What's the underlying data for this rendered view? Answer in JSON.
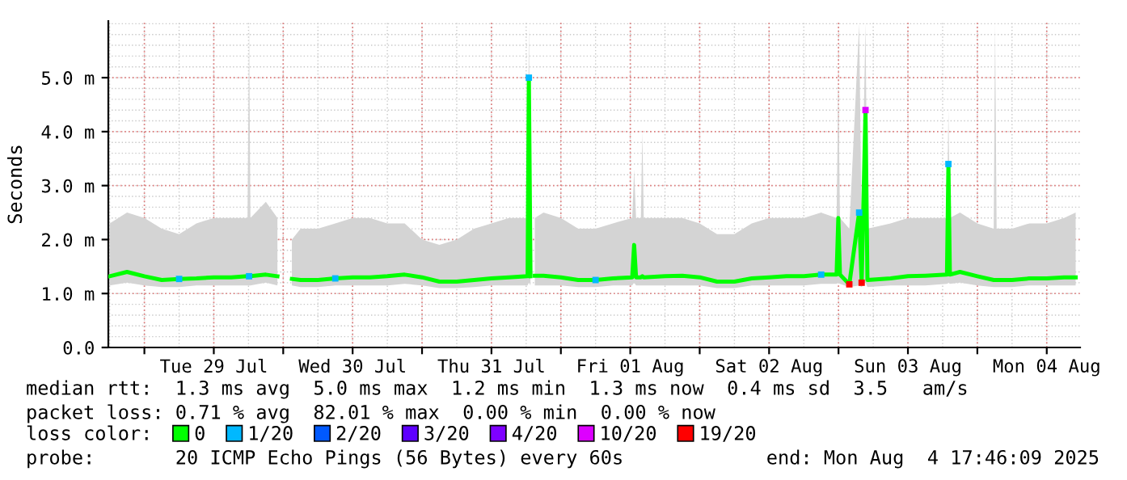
{
  "chart_data": {
    "type": "line",
    "ylabel": "Seconds",
    "x": [
      "2025-07-28T18:00",
      "2025-07-28T21:00",
      "2025-07-29T00:00",
      "2025-07-29T03:00",
      "2025-07-29T06:00",
      "2025-07-29T09:00",
      "2025-07-29T12:00",
      "2025-07-29T15:00",
      "2025-07-29T17:50",
      "2025-07-29T18:06",
      "2025-07-29T18:20",
      "2025-07-29T21:00",
      "2025-07-29T23:00",
      "2025-07-30T00:00",
      "2025-07-30T01:30",
      "2025-07-30T03:00",
      "2025-07-30T06:00",
      "2025-07-30T09:00",
      "2025-07-30T12:00",
      "2025-07-30T15:00",
      "2025-07-30T18:00",
      "2025-07-30T21:00",
      "2025-07-31T00:00",
      "2025-07-31T03:00",
      "2025-07-31T06:00",
      "2025-07-31T09:00",
      "2025-07-31T12:00",
      "2025-07-31T15:00",
      "2025-07-31T18:15",
      "2025-07-31T18:28",
      "2025-07-31T18:45",
      "2025-07-31T19:00",
      "2025-07-31T19:30",
      "2025-07-31T21:00",
      "2025-08-01T00:00",
      "2025-08-01T03:00",
      "2025-08-01T06:00",
      "2025-08-01T09:00",
      "2025-08-01T12:20",
      "2025-08-01T12:40",
      "2025-08-01T13:00",
      "2025-08-01T13:50",
      "2025-08-01T14:05",
      "2025-08-01T14:20",
      "2025-08-01T18:00",
      "2025-08-01T21:00",
      "2025-08-02T00:00",
      "2025-08-02T03:00",
      "2025-08-02T06:00",
      "2025-08-02T09:00",
      "2025-08-02T12:00",
      "2025-08-02T15:00",
      "2025-08-02T18:00",
      "2025-08-02T21:00",
      "2025-08-02T23:40",
      "2025-08-02T23:58",
      "2025-08-03T00:15",
      "2025-08-03T01:52",
      "2025-08-03T03:34",
      "2025-08-03T04:00",
      "2025-08-03T04:40",
      "2025-08-03T05:00",
      "2025-08-03T09:00",
      "2025-08-03T12:00",
      "2025-08-03T15:00",
      "2025-08-03T18:45",
      "2025-08-03T19:00",
      "2025-08-03T19:15",
      "2025-08-03T21:00",
      "2025-08-04T00:00",
      "2025-08-04T02:50",
      "2025-08-04T03:04",
      "2025-08-04T03:20",
      "2025-08-04T06:00",
      "2025-08-04T09:00",
      "2025-08-04T12:00",
      "2025-08-04T15:00",
      "2025-08-04T17:00"
    ],
    "series": [
      {
        "name": "0",
        "color": "#00ff00",
        "values": [
          1.32,
          1.4,
          1.32,
          1.25,
          1.27,
          1.28,
          1.3,
          1.3,
          1.32,
          1.32,
          1.32,
          1.35,
          1.32,
          null,
          1.27,
          1.25,
          1.25,
          1.28,
          1.3,
          1.3,
          1.32,
          1.35,
          1.3,
          1.22,
          1.22,
          1.25,
          1.28,
          1.3,
          1.32,
          5.0,
          1.32,
          null,
          1.33,
          1.33,
          1.3,
          1.25,
          1.25,
          1.28,
          1.3,
          1.9,
          1.3,
          1.3,
          1.32,
          1.3,
          1.32,
          1.33,
          1.3,
          1.22,
          1.22,
          1.28,
          1.3,
          1.32,
          1.32,
          1.35,
          1.35,
          2.4,
          1.35,
          1.17,
          2.5,
          1.2,
          4.4,
          1.25,
          1.28,
          1.32,
          1.33,
          1.35,
          3.4,
          1.35,
          1.4,
          1.32,
          1.25,
          1.25,
          1.25,
          1.25,
          1.28,
          1.28,
          1.3,
          1.3
        ],
        "lower": [
          1.15,
          1.2,
          1.15,
          1.12,
          1.12,
          1.15,
          1.15,
          1.15,
          1.15,
          1.15,
          1.15,
          1.2,
          1.15,
          null,
          1.15,
          1.12,
          1.12,
          1.15,
          1.15,
          1.15,
          1.15,
          1.18,
          1.15,
          1.1,
          1.1,
          1.12,
          1.15,
          1.15,
          1.15,
          1.2,
          1.15,
          null,
          1.15,
          1.15,
          1.15,
          1.12,
          1.12,
          1.15,
          1.15,
          1.2,
          1.15,
          1.15,
          1.15,
          1.15,
          1.15,
          1.15,
          1.15,
          1.1,
          1.1,
          1.15,
          1.15,
          1.15,
          1.15,
          1.18,
          1.18,
          1.2,
          1.18,
          1.12,
          1.15,
          1.12,
          1.2,
          1.12,
          1.15,
          1.15,
          1.15,
          1.18,
          1.2,
          1.18,
          1.2,
          1.15,
          1.12,
          1.12,
          1.12,
          1.12,
          1.15,
          1.15,
          1.15,
          1.15
        ],
        "upper": [
          2.3,
          2.5,
          2.4,
          2.2,
          2.1,
          2.3,
          2.4,
          2.4,
          2.4,
          6.0,
          2.4,
          2.7,
          2.4,
          null,
          2.0,
          2.2,
          2.2,
          2.3,
          2.4,
          2.4,
          2.3,
          2.3,
          2.0,
          1.9,
          2.0,
          2.2,
          2.3,
          2.4,
          2.4,
          6.0,
          2.4,
          null,
          2.4,
          2.5,
          2.4,
          2.2,
          2.2,
          2.3,
          2.4,
          3.3,
          2.4,
          2.4,
          4.0,
          2.4,
          2.4,
          2.4,
          2.3,
          2.1,
          2.1,
          2.3,
          2.4,
          2.4,
          2.4,
          2.5,
          2.4,
          5.0,
          2.4,
          2.2,
          6.0,
          2.2,
          6.0,
          2.2,
          2.3,
          2.4,
          2.4,
          2.4,
          4.4,
          2.4,
          2.5,
          2.3,
          2.2,
          6.0,
          2.2,
          2.2,
          2.3,
          2.3,
          2.4,
          2.5
        ]
      },
      {
        "name": "1/20",
        "color": "#00b8ff",
        "type": "scatter",
        "x": [
          "2025-07-29T06:00",
          "2025-07-29T18:06",
          "2025-07-30T09:00",
          "2025-07-31T18:28",
          "2025-08-01T06:00",
          "2025-08-02T21:00",
          "2025-08-03T03:34",
          "2025-08-03T19:00"
        ],
        "values": [
          1.27,
          1.32,
          1.28,
          5.0,
          1.25,
          1.35,
          2.5,
          3.4
        ]
      },
      {
        "name": "2/20",
        "color": "#0059ff",
        "type": "scatter",
        "values": [
          null,
          null,
          null,
          null,
          null,
          null,
          null,
          null,
          null,
          null,
          null,
          null,
          null,
          null,
          null,
          null,
          null,
          null,
          null,
          null,
          null,
          null,
          null,
          null,
          null,
          null,
          null,
          null,
          null,
          null,
          null,
          null,
          null,
          null,
          null,
          null,
          null,
          null,
          null,
          null,
          null,
          null,
          null,
          null,
          null,
          null,
          null,
          null,
          null,
          null,
          null,
          null,
          null,
          null,
          null,
          null,
          null,
          null,
          null,
          null,
          null,
          null,
          null,
          null,
          null,
          null,
          null,
          null,
          null,
          null,
          null,
          null,
          null,
          null,
          null,
          null,
          null,
          null
        ]
      },
      {
        "name": "3/20",
        "color": "#5e00ff",
        "type": "scatter",
        "values": [
          null,
          null,
          null,
          null,
          null,
          null,
          null,
          null,
          null,
          null,
          null,
          null,
          null,
          null,
          null,
          null,
          null,
          null,
          null,
          null,
          null,
          null,
          null,
          null,
          null,
          null,
          null,
          null,
          null,
          null,
          null,
          null,
          null,
          null,
          null,
          null,
          null,
          null,
          null,
          null,
          null,
          null,
          null,
          null,
          null,
          null,
          null,
          null,
          null,
          null,
          null,
          null,
          null,
          null,
          null,
          null,
          null,
          null,
          null,
          null,
          null,
          null,
          null,
          null,
          null,
          null,
          null,
          null,
          null,
          null,
          null,
          null,
          null,
          null,
          null,
          null,
          null,
          null
        ]
      },
      {
        "name": "4/20",
        "color": "#7e00ff",
        "type": "scatter",
        "values": [
          null,
          null,
          null,
          null,
          null,
          null,
          null,
          null,
          null,
          null,
          null,
          null,
          null,
          null,
          null,
          null,
          null,
          null,
          null,
          null,
          null,
          null,
          null,
          null,
          null,
          null,
          null,
          null,
          null,
          null,
          null,
          null,
          null,
          null,
          null,
          null,
          null,
          null,
          null,
          null,
          null,
          null,
          null,
          null,
          null,
          null,
          null,
          null,
          null,
          null,
          null,
          null,
          null,
          null,
          null,
          null,
          null,
          null,
          null,
          null,
          null,
          null,
          null,
          null,
          null,
          null,
          null,
          null,
          null,
          null,
          null,
          null,
          null,
          null,
          null,
          null,
          null,
          null
        ]
      },
      {
        "name": "10/20",
        "color": "#dd00ff",
        "type": "scatter",
        "x": [
          "2025-08-03T04:40"
        ],
        "values": [
          4.4
        ]
      },
      {
        "name": "19/20",
        "color": "#ff0000",
        "type": "scatter",
        "x": [
          "2025-08-03T01:52",
          "2025-08-03T04:00"
        ],
        "values": [
          1.17,
          1.2
        ]
      }
    ],
    "xlim": [
      "2025-07-28T17:46",
      "2025-08-04T17:46"
    ],
    "xticks": [
      {
        "value": "2025-07-29T00:00",
        "label": null
      },
      {
        "value": "2025-07-29T12:00",
        "label": "Tue 29 Jul"
      },
      {
        "value": "2025-07-30T00:00",
        "label": null
      },
      {
        "value": "2025-07-30T12:00",
        "label": "Wed 30 Jul"
      },
      {
        "value": "2025-07-31T00:00",
        "label": null
      },
      {
        "value": "2025-07-31T12:00",
        "label": "Thu 31 Jul"
      },
      {
        "value": "2025-08-01T00:00",
        "label": null
      },
      {
        "value": "2025-08-01T12:00",
        "label": "Fri 01 Aug"
      },
      {
        "value": "2025-08-02T00:00",
        "label": null
      },
      {
        "value": "2025-08-02T12:00",
        "label": "Sat 02 Aug"
      },
      {
        "value": "2025-08-03T00:00",
        "label": null
      },
      {
        "value": "2025-08-03T12:00",
        "label": "Sun 03 Aug"
      },
      {
        "value": "2025-08-04T00:00",
        "label": null
      },
      {
        "value": "2025-08-04T12:00",
        "label": "Mon 04 Aug"
      }
    ],
    "ylim": [
      0,
      6.05
    ],
    "yticks": [
      {
        "value": 0,
        "label": "0.0"
      },
      {
        "value": 1,
        "label": "1.0 m"
      },
      {
        "value": 2,
        "label": "2.0 m"
      },
      {
        "value": 3,
        "label": "3.0 m"
      },
      {
        "value": 4,
        "label": "4.0 m"
      },
      {
        "value": 5,
        "label": "5.0 m"
      }
    ],
    "grid": true,
    "legend": "bottom",
    "annotations": [
      "median rtt:  1.3 ms avg  5.0 ms max  1.2 ms min  1.3 ms now  0.4 ms sd  3.5   am/s",
      "packet loss: 0.71 % avg  82.01 % max  0.00 % min  0.00 % now",
      "loss color:",
      "probe:       20 ICMP Echo Pings (56 Bytes) every 60s",
      "end: Mon Aug  4 17:46:09 2025"
    ]
  }
}
